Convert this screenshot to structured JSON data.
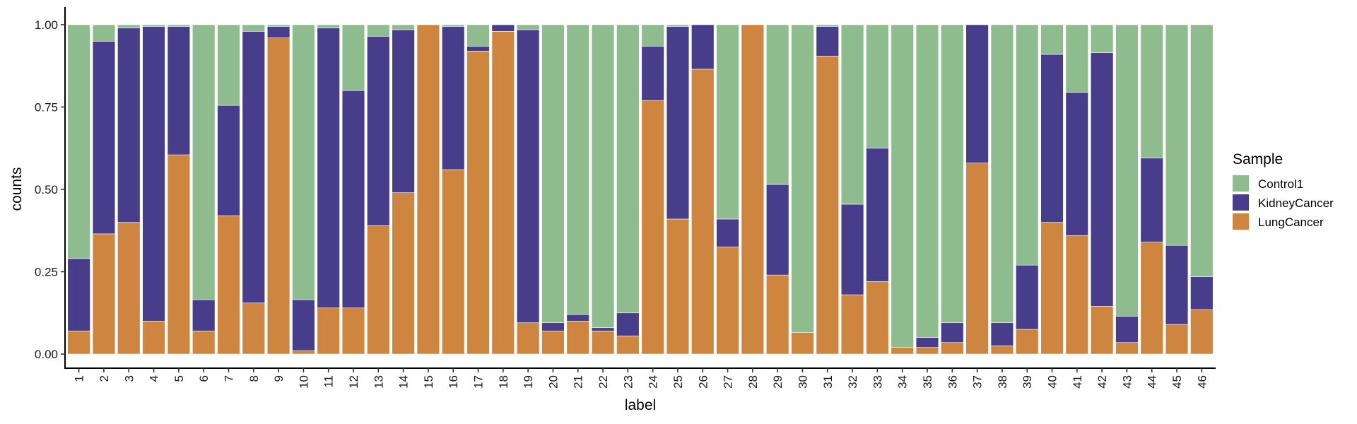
{
  "chart_data": {
    "type": "bar",
    "stacked": true,
    "xlabel": "label",
    "ylabel": "counts",
    "ylim": [
      0,
      1
    ],
    "yticks": [
      "0.00",
      "0.25",
      "0.50",
      "0.75",
      "1.00"
    ],
    "grid": false,
    "legend_title": "Sample",
    "legend_position": "right",
    "categories": [
      "1",
      "2",
      "3",
      "4",
      "5",
      "6",
      "7",
      "8",
      "9",
      "10",
      "11",
      "12",
      "13",
      "14",
      "15",
      "16",
      "17",
      "18",
      "19",
      "20",
      "21",
      "22",
      "23",
      "24",
      "25",
      "26",
      "27",
      "28",
      "29",
      "30",
      "31",
      "32",
      "33",
      "34",
      "35",
      "36",
      "37",
      "38",
      "39",
      "40",
      "41",
      "42",
      "43",
      "44",
      "45",
      "46"
    ],
    "series": [
      {
        "name": "LungCancer",
        "color": "#CD853F",
        "values": [
          0.07,
          0.365,
          0.4,
          0.1,
          0.605,
          0.07,
          0.42,
          0.155,
          0.96,
          0.01,
          0.14,
          0.14,
          0.39,
          0.49,
          1.0,
          0.56,
          0.92,
          0.98,
          0.095,
          0.07,
          0.1,
          0.07,
          0.055,
          0.77,
          0.41,
          0.865,
          0.325,
          1.0,
          0.24,
          0.065,
          0.905,
          0.18,
          0.22,
          0.02,
          0.02,
          0.035,
          0.58,
          0.025,
          0.075,
          0.4,
          0.36,
          0.145,
          0.035,
          0.34,
          0.09,
          0.135
        ]
      },
      {
        "name": "KidneyCancer",
        "color": "#483D8B",
        "values": [
          0.22,
          0.585,
          0.59,
          0.895,
          0.39,
          0.095,
          0.335,
          0.825,
          0.035,
          0.155,
          0.85,
          0.66,
          0.575,
          0.495,
          0.0,
          0.435,
          0.015,
          0.02,
          0.89,
          0.025,
          0.02,
          0.01,
          0.07,
          0.165,
          0.585,
          0.135,
          0.085,
          0.0,
          0.275,
          0.0,
          0.09,
          0.275,
          0.405,
          0.0,
          0.03,
          0.06,
          0.42,
          0.07,
          0.195,
          0.51,
          0.435,
          0.77,
          0.08,
          0.255,
          0.24,
          0.1
        ]
      },
      {
        "name": "Control1",
        "color": "#8FBC8F",
        "values": [
          0.71,
          0.05,
          0.01,
          0.005,
          0.005,
          0.835,
          0.245,
          0.02,
          0.005,
          0.835,
          0.01,
          0.2,
          0.035,
          0.015,
          0.0,
          0.005,
          0.065,
          0.0,
          0.015,
          0.905,
          0.88,
          0.92,
          0.875,
          0.065,
          0.005,
          0.0,
          0.59,
          0.0,
          0.485,
          0.935,
          0.005,
          0.545,
          0.375,
          0.98,
          0.95,
          0.905,
          0.0,
          0.905,
          0.73,
          0.09,
          0.205,
          0.085,
          0.885,
          0.405,
          0.67,
          0.765
        ]
      }
    ],
    "legend_order": [
      "Control1",
      "KidneyCancer",
      "LungCancer"
    ]
  }
}
